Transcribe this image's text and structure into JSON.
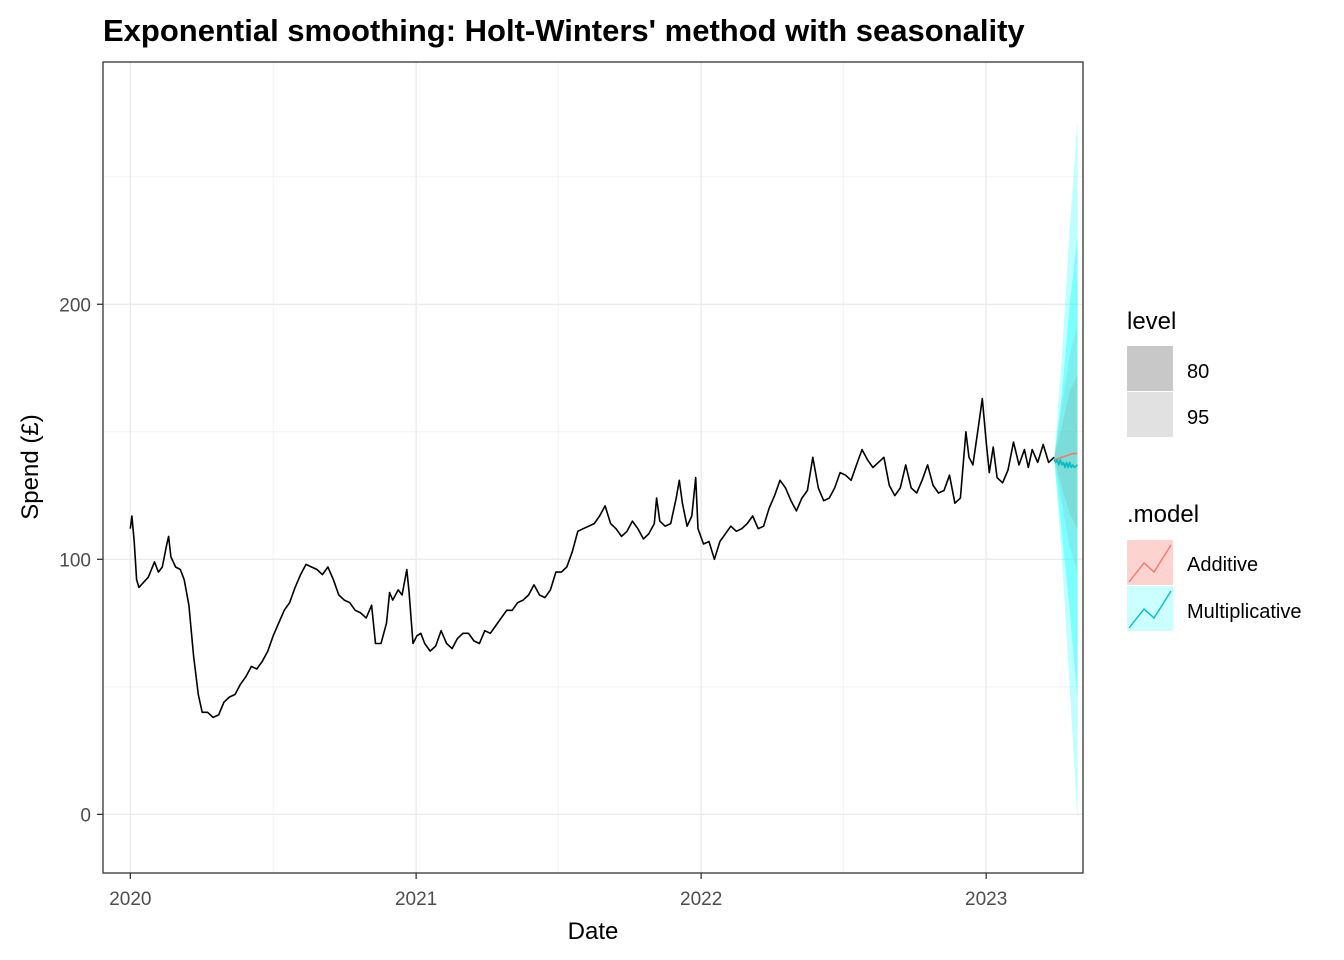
{
  "chart_data": {
    "type": "line",
    "title": "Exponential smoothing: Holt-Winters' method with seasonality",
    "xlabel": "Date",
    "ylabel": "Spend (£)",
    "x_ticks": [
      "2020",
      "2021",
      "2022",
      "2023"
    ],
    "y_ticks": [
      "0",
      "100",
      "200"
    ],
    "xlim": [
      "2019-11-27",
      "2023-05-05"
    ],
    "ylim": [
      -23,
      295
    ],
    "grid": true,
    "legend_position": "right",
    "legend_level": {
      "title": "level",
      "entries": [
        {
          "label": "80",
          "color": "#c8c8c8"
        },
        {
          "label": "95",
          "color": "#e1e1e1"
        }
      ]
    },
    "legend_model": {
      "title": ".model",
      "entries": [
        {
          "label": "Additive",
          "color": "#f8766d"
        },
        {
          "label": "Multiplicative",
          "color": "#00bfc4"
        }
      ]
    },
    "series": [
      {
        "color": "#000000",
        "points": [
          [
            "2020-01-01",
            112
          ],
          [
            "2020-01-03",
            117
          ],
          [
            "2020-01-06",
            107
          ],
          [
            "2020-01-09",
            92
          ],
          [
            "2020-01-12",
            89
          ],
          [
            "2020-01-18",
            91
          ],
          [
            "2020-01-24",
            93
          ],
          [
            "2020-02-01",
            99
          ],
          [
            "2020-02-06",
            95
          ],
          [
            "2020-02-11",
            97
          ],
          [
            "2020-02-16",
            105
          ],
          [
            "2020-02-19",
            109
          ],
          [
            "2020-02-22",
            101
          ],
          [
            "2020-02-28",
            97
          ],
          [
            "2020-03-05",
            96
          ],
          [
            "2020-03-10",
            92
          ],
          [
            "2020-03-16",
            82
          ],
          [
            "2020-03-22",
            62
          ],
          [
            "2020-03-28",
            47
          ],
          [
            "2020-04-02",
            40
          ],
          [
            "2020-04-09",
            40
          ],
          [
            "2020-04-16",
            38
          ],
          [
            "2020-04-23",
            39
          ],
          [
            "2020-04-30",
            44
          ],
          [
            "2020-05-07",
            46
          ],
          [
            "2020-05-14",
            47
          ],
          [
            "2020-05-21",
            51
          ],
          [
            "2020-05-28",
            54
          ],
          [
            "2020-06-04",
            58
          ],
          [
            "2020-06-11",
            57
          ],
          [
            "2020-06-18",
            60
          ],
          [
            "2020-06-25",
            64
          ],
          [
            "2020-07-02",
            70
          ],
          [
            "2020-07-09",
            75
          ],
          [
            "2020-07-16",
            80
          ],
          [
            "2020-07-23",
            83
          ],
          [
            "2020-07-30",
            89
          ],
          [
            "2020-08-06",
            94
          ],
          [
            "2020-08-13",
            98
          ],
          [
            "2020-08-20",
            97
          ],
          [
            "2020-08-27",
            96
          ],
          [
            "2020-09-03",
            94
          ],
          [
            "2020-09-10",
            97
          ],
          [
            "2020-09-17",
            92
          ],
          [
            "2020-09-24",
            86
          ],
          [
            "2020-10-01",
            84
          ],
          [
            "2020-10-08",
            83
          ],
          [
            "2020-10-15",
            80
          ],
          [
            "2020-10-22",
            79
          ],
          [
            "2020-10-29",
            77
          ],
          [
            "2020-11-05",
            82
          ],
          [
            "2020-11-10",
            67
          ],
          [
            "2020-11-17",
            67
          ],
          [
            "2020-11-24",
            75
          ],
          [
            "2020-11-28",
            87
          ],
          [
            "2020-12-02",
            84
          ],
          [
            "2020-12-09",
            88
          ],
          [
            "2020-12-14",
            86
          ],
          [
            "2020-12-20",
            96
          ],
          [
            "2020-12-23",
            87
          ],
          [
            "2020-12-28",
            67
          ],
          [
            "2021-01-02",
            70
          ],
          [
            "2021-01-07",
            71
          ],
          [
            "2021-01-12",
            67
          ],
          [
            "2021-01-19",
            64
          ],
          [
            "2021-01-26",
            66
          ],
          [
            "2021-02-02",
            72
          ],
          [
            "2021-02-09",
            67
          ],
          [
            "2021-02-16",
            65
          ],
          [
            "2021-02-23",
            69
          ],
          [
            "2021-03-02",
            71
          ],
          [
            "2021-03-09",
            71
          ],
          [
            "2021-03-16",
            68
          ],
          [
            "2021-03-23",
            67
          ],
          [
            "2021-03-30",
            72
          ],
          [
            "2021-04-06",
            71
          ],
          [
            "2021-04-13",
            74
          ],
          [
            "2021-04-20",
            77
          ],
          [
            "2021-04-27",
            80
          ],
          [
            "2021-05-04",
            80
          ],
          [
            "2021-05-11",
            83
          ],
          [
            "2021-05-18",
            84
          ],
          [
            "2021-05-25",
            86
          ],
          [
            "2021-06-01",
            90
          ],
          [
            "2021-06-08",
            86
          ],
          [
            "2021-06-15",
            85
          ],
          [
            "2021-06-22",
            88
          ],
          [
            "2021-06-29",
            95
          ],
          [
            "2021-07-06",
            95
          ],
          [
            "2021-07-13",
            97
          ],
          [
            "2021-07-20",
            103
          ],
          [
            "2021-07-27",
            111
          ],
          [
            "2021-08-03",
            112
          ],
          [
            "2021-08-10",
            113
          ],
          [
            "2021-08-17",
            114
          ],
          [
            "2021-08-24",
            117
          ],
          [
            "2021-08-31",
            121
          ],
          [
            "2021-09-07",
            114
          ],
          [
            "2021-09-14",
            112
          ],
          [
            "2021-09-21",
            109
          ],
          [
            "2021-09-28",
            111
          ],
          [
            "2021-10-05",
            115
          ],
          [
            "2021-10-12",
            112
          ],
          [
            "2021-10-19",
            108
          ],
          [
            "2021-10-26",
            110
          ],
          [
            "2021-11-02",
            114
          ],
          [
            "2021-11-05",
            124
          ],
          [
            "2021-11-09",
            115
          ],
          [
            "2021-11-16",
            113
          ],
          [
            "2021-11-23",
            114
          ],
          [
            "2021-11-30",
            124
          ],
          [
            "2021-12-04",
            131
          ],
          [
            "2021-12-08",
            122
          ],
          [
            "2021-12-14",
            113
          ],
          [
            "2021-12-20",
            117
          ],
          [
            "2021-12-25",
            132
          ],
          [
            "2021-12-28",
            112
          ],
          [
            "2022-01-04",
            106
          ],
          [
            "2022-01-11",
            107
          ],
          [
            "2022-01-18",
            100
          ],
          [
            "2022-01-25",
            107
          ],
          [
            "2022-02-01",
            110
          ],
          [
            "2022-02-08",
            113
          ],
          [
            "2022-02-15",
            111
          ],
          [
            "2022-02-22",
            112
          ],
          [
            "2022-03-01",
            114
          ],
          [
            "2022-03-08",
            117
          ],
          [
            "2022-03-15",
            112
          ],
          [
            "2022-03-22",
            113
          ],
          [
            "2022-03-29",
            120
          ],
          [
            "2022-04-05",
            125
          ],
          [
            "2022-04-12",
            131
          ],
          [
            "2022-04-19",
            128
          ],
          [
            "2022-04-26",
            123
          ],
          [
            "2022-05-03",
            119
          ],
          [
            "2022-05-10",
            124
          ],
          [
            "2022-05-17",
            127
          ],
          [
            "2022-05-24",
            140
          ],
          [
            "2022-05-31",
            128
          ],
          [
            "2022-06-07",
            123
          ],
          [
            "2022-06-14",
            124
          ],
          [
            "2022-06-21",
            128
          ],
          [
            "2022-06-28",
            134
          ],
          [
            "2022-07-05",
            133
          ],
          [
            "2022-07-12",
            131
          ],
          [
            "2022-07-19",
            137
          ],
          [
            "2022-07-26",
            143
          ],
          [
            "2022-08-02",
            139
          ],
          [
            "2022-08-09",
            136
          ],
          [
            "2022-08-16",
            138
          ],
          [
            "2022-08-23",
            140
          ],
          [
            "2022-08-30",
            129
          ],
          [
            "2022-09-06",
            125
          ],
          [
            "2022-09-13",
            128
          ],
          [
            "2022-09-20",
            137
          ],
          [
            "2022-09-27",
            128
          ],
          [
            "2022-10-04",
            126
          ],
          [
            "2022-10-11",
            131
          ],
          [
            "2022-10-18",
            137
          ],
          [
            "2022-10-25",
            129
          ],
          [
            "2022-11-01",
            126
          ],
          [
            "2022-11-08",
            127
          ],
          [
            "2022-11-15",
            133
          ],
          [
            "2022-11-22",
            122
          ],
          [
            "2022-11-29",
            124
          ],
          [
            "2022-12-06",
            150
          ],
          [
            "2022-12-10",
            140
          ],
          [
            "2022-12-15",
            137
          ],
          [
            "2022-12-22",
            152
          ],
          [
            "2022-12-27",
            163
          ],
          [
            "2023-01-01",
            146
          ],
          [
            "2023-01-05",
            134
          ],
          [
            "2023-01-10",
            144
          ],
          [
            "2023-01-15",
            132
          ],
          [
            "2023-01-22",
            130
          ],
          [
            "2023-01-29",
            135
          ],
          [
            "2023-02-05",
            146
          ],
          [
            "2023-02-12",
            137
          ],
          [
            "2023-02-19",
            143
          ],
          [
            "2023-02-24",
            136
          ],
          [
            "2023-03-01",
            143
          ],
          [
            "2023-03-08",
            138
          ],
          [
            "2023-03-15",
            145
          ],
          [
            "2023-03-22",
            138
          ],
          [
            "2023-03-29",
            140
          ]
        ]
      },
      {
        "name": "Additive",
        "color": "#f8766d",
        "points": [
          [
            "2023-03-29",
            139
          ],
          [
            "2023-04-03",
            139.5
          ],
          [
            "2023-04-08",
            140
          ],
          [
            "2023-04-13",
            140.5
          ],
          [
            "2023-04-18",
            141
          ],
          [
            "2023-04-23",
            141.5
          ],
          [
            "2023-04-28",
            141.5
          ]
        ]
      },
      {
        "name": "Multiplicative",
        "color": "#00bfc4",
        "points": [
          [
            "2023-03-29",
            139
          ],
          [
            "2023-03-31",
            138
          ],
          [
            "2023-04-02",
            139
          ],
          [
            "2023-04-04",
            137
          ],
          [
            "2023-04-06",
            139
          ],
          [
            "2023-04-08",
            137
          ],
          [
            "2023-04-10",
            138
          ],
          [
            "2023-04-12",
            136
          ],
          [
            "2023-04-14",
            138
          ],
          [
            "2023-04-16",
            136
          ],
          [
            "2023-04-18",
            138
          ],
          [
            "2023-04-20",
            136
          ],
          [
            "2023-04-22",
            137
          ],
          [
            "2023-04-24",
            136
          ],
          [
            "2023-04-28",
            137
          ]
        ]
      }
    ],
    "intervals": [
      {
        "model": "Additive",
        "level": "95",
        "color": "#f8766d",
        "points": [
          [
            "2023-03-29",
            140,
            140
          ],
          [
            "2023-04-08",
            122,
            160
          ],
          [
            "2023-04-18",
            105,
            180
          ],
          [
            "2023-04-28",
            95,
            192
          ]
        ]
      },
      {
        "model": "Additive",
        "level": "80",
        "color": "#f8766d",
        "points": [
          [
            "2023-03-29",
            140,
            140
          ],
          [
            "2023-04-08",
            128,
            152
          ],
          [
            "2023-04-18",
            118,
            166
          ],
          [
            "2023-04-28",
            112,
            172
          ]
        ]
      },
      {
        "model": "Multiplicative",
        "level": "95",
        "color": "#00ffff",
        "points": [
          [
            "2023-03-29",
            139,
            139
          ],
          [
            "2023-04-08",
            100,
            180
          ],
          [
            "2023-04-18",
            50,
            230
          ],
          [
            "2023-04-28",
            -3,
            272
          ]
        ]
      },
      {
        "model": "Multiplicative",
        "level": "80",
        "color": "#00ffff",
        "points": [
          [
            "2023-03-29",
            139,
            139
          ],
          [
            "2023-04-08",
            110,
            165
          ],
          [
            "2023-04-18",
            80,
            200
          ],
          [
            "2023-04-28",
            45,
            227
          ]
        ]
      }
    ]
  }
}
